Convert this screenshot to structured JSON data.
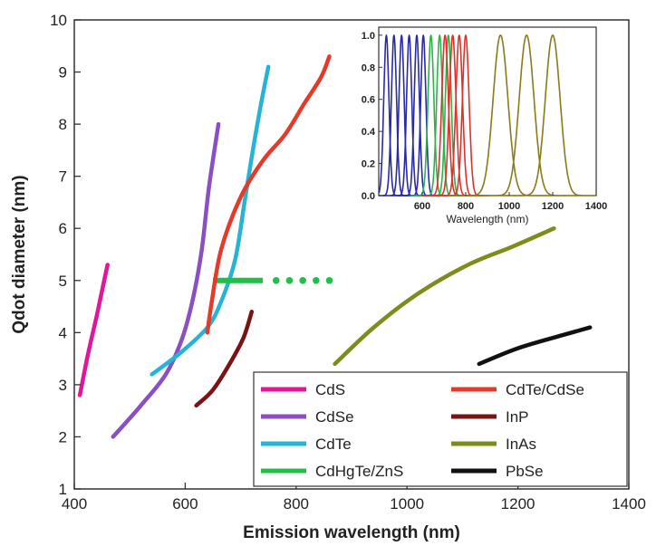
{
  "chart_data": [
    {
      "type": "line",
      "xlabel": "Emission wavelength (nm)",
      "ylabel": "Qdot diameter (nm)",
      "xlim": [
        400,
        1400
      ],
      "ylim": [
        1,
        10
      ],
      "xticks": [
        400,
        600,
        800,
        1000,
        1200,
        1400
      ],
      "yticks": [
        1,
        2,
        3,
        4,
        5,
        6,
        7,
        8,
        9,
        10
      ],
      "grid": false,
      "legend_position": "bottom-right",
      "series": [
        {
          "name": "CdS",
          "color": "#e0179a",
          "style": "solid",
          "points": [
            [
              410,
              2.8
            ],
            [
              425,
              3.6
            ],
            [
              440,
              4.3
            ],
            [
              452,
              4.9
            ],
            [
              460,
              5.3
            ]
          ]
        },
        {
          "name": "CdSe",
          "color": "#8a4fc0",
          "style": "solid",
          "points": [
            [
              470,
              2.0
            ],
            [
              520,
              2.6
            ],
            [
              565,
              3.2
            ],
            [
              595,
              3.9
            ],
            [
              615,
              4.7
            ],
            [
              630,
              5.6
            ],
            [
              643,
              6.8
            ],
            [
              660,
              8.0
            ]
          ]
        },
        {
          "name": "CdTe",
          "color": "#27b3d3",
          "style": "solid",
          "points": [
            [
              540,
              3.2
            ],
            [
              590,
              3.6
            ],
            [
              640,
              4.1
            ],
            [
              665,
              4.6
            ],
            [
              690,
              5.4
            ],
            [
              707,
              6.5
            ],
            [
              722,
              7.5
            ],
            [
              737,
              8.4
            ],
            [
              750,
              9.1
            ]
          ]
        },
        {
          "name": "CdHgTe/ZnS",
          "color": "#1fbf4a",
          "style": "solid+dotted",
          "points": [
            [
              650,
              5.0
            ],
            [
              860,
              5.0
            ]
          ],
          "solid_end_x": 740
        },
        {
          "name": "CdTe/CdSe",
          "color": "#e43a2c",
          "style": "solid",
          "points": [
            [
              640,
              4.0
            ],
            [
              648,
              4.6
            ],
            [
              665,
              5.6
            ],
            [
              700,
              6.6
            ],
            [
              740,
              7.3
            ],
            [
              780,
              7.8
            ],
            [
              815,
              8.4
            ],
            [
              845,
              8.9
            ],
            [
              860,
              9.3
            ]
          ]
        },
        {
          "name": "InP",
          "color": "#7a1414",
          "style": "solid",
          "points": [
            [
              620,
              2.6
            ],
            [
              650,
              2.9
            ],
            [
              680,
              3.4
            ],
            [
              705,
              3.9
            ],
            [
              720,
              4.4
            ]
          ]
        },
        {
          "name": "InAs",
          "color": "#7f8c1c",
          "style": "solid",
          "points": [
            [
              870,
              3.4
            ],
            [
              940,
              4.1
            ],
            [
              1020,
              4.75
            ],
            [
              1110,
              5.3
            ],
            [
              1190,
              5.65
            ],
            [
              1265,
              6.0
            ]
          ]
        },
        {
          "name": "PbSe",
          "color": "#111111",
          "style": "solid",
          "points": [
            [
              1130,
              3.4
            ],
            [
              1200,
              3.7
            ],
            [
              1280,
              3.95
            ],
            [
              1330,
              4.1
            ]
          ]
        }
      ]
    },
    {
      "type": "line",
      "subtype": "emission-spectra-inset",
      "xlabel": "Wavelength (nm)",
      "ylabel": "",
      "xlim": [
        400,
        1400
      ],
      "ylim": [
        0,
        1.05
      ],
      "xticks": [
        600,
        800,
        1000,
        1200,
        1400
      ],
      "yticks": [
        0.0,
        0.2,
        0.4,
        0.6,
        0.8,
        1.0
      ],
      "yticklabels": [
        "0.0",
        "0.2",
        "0.4",
        "0.6",
        "0.8",
        "1.0"
      ],
      "grid": false,
      "series": [
        {
          "color": "#2a2aa6",
          "peaks": [
            435,
            470,
            505,
            540,
            575,
            605
          ],
          "fwhm": 28
        },
        {
          "color": "#2db34a",
          "peaks": [
            640,
            680,
            720
          ],
          "fwhm": 32
        },
        {
          "color": "#e0302a",
          "peaks": [
            705,
            740,
            770,
            800
          ],
          "fwhm": 36
        },
        {
          "color": "#8a7a1a",
          "peaks": [
            960,
            1080,
            1200
          ],
          "fwhm": 80
        }
      ]
    }
  ]
}
